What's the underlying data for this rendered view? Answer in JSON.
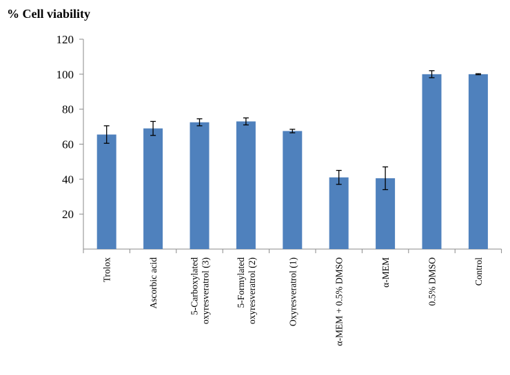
{
  "chart_data": {
    "type": "bar",
    "title": "",
    "ylabel": "% Cell viability",
    "xlabel": "",
    "ylim": [
      0,
      120
    ],
    "yticks": [
      20,
      40,
      60,
      80,
      100,
      120
    ],
    "grid": false,
    "bar_color": "#4f81bd",
    "categories": [
      [
        "Trolox"
      ],
      [
        "Ascorbic acid"
      ],
      [
        "5-Carboxylated",
        "oxyresveratrol (3)"
      ],
      [
        "5-Formylated",
        "oxyresveratrol (2)"
      ],
      [
        "Oxyresveratrol (1)"
      ],
      [
        "α-MEM + 0.5% DMSO"
      ],
      [
        "α-MEM"
      ],
      [
        "0.5% DMSO"
      ],
      [
        "Control"
      ]
    ],
    "values": [
      65.5,
      69,
      72.5,
      73,
      67.5,
      41,
      40.5,
      100,
      100
    ],
    "errors": [
      5,
      4,
      2,
      2,
      1,
      4,
      6.5,
      2,
      0.3
    ]
  }
}
